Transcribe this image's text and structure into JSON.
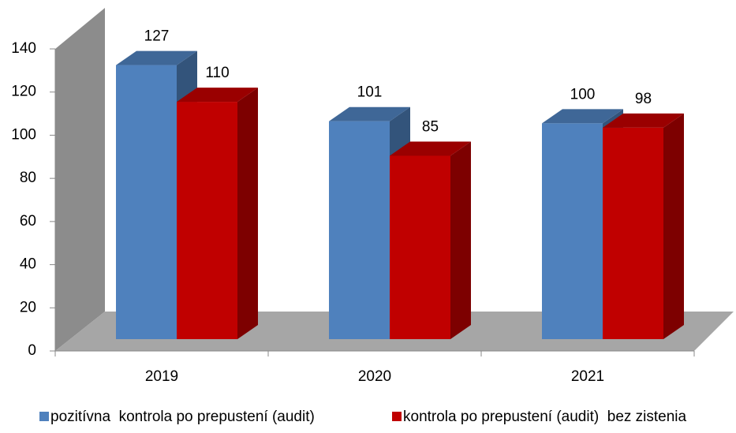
{
  "chart_data": {
    "type": "bar3d",
    "categories": [
      "2019",
      "2020",
      "2021"
    ],
    "series": [
      {
        "name": "pozitívna  kontrola po prepustení (audit)",
        "color": "#4f81bd",
        "values": [
          127,
          101,
          100
        ]
      },
      {
        "name": "kontrola po prepustení (audit)  bez zistenia",
        "color": "#c00000",
        "values": [
          110,
          85,
          98
        ]
      }
    ],
    "ylim": [
      0,
      140
    ],
    "yticks": [
      0,
      20,
      40,
      60,
      80,
      100,
      120,
      140
    ]
  }
}
